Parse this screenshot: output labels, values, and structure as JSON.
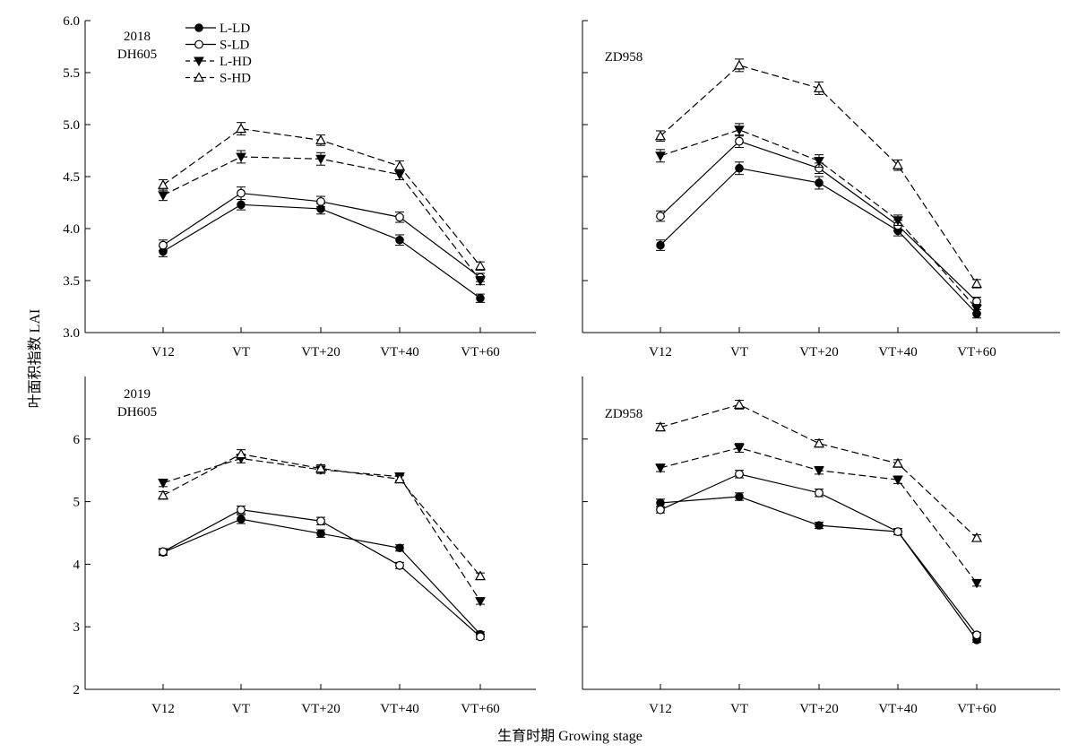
{
  "figure": {
    "ylabel": "叶面积指数 LAI",
    "xlabel": "生育时期 Growing stage"
  },
  "legend": [
    {
      "label": "L-LD",
      "marker": "filled-circle",
      "line": "solid"
    },
    {
      "label": "S-LD",
      "marker": "open-circle",
      "line": "solid"
    },
    {
      "label": "L-HD",
      "marker": "filled-triangle-down",
      "line": "dashed"
    },
    {
      "label": "S-HD",
      "marker": "open-triangle-up",
      "line": "dashed"
    }
  ],
  "colors": {
    "ink": "#000000",
    "background": "#ffffff"
  },
  "chart_data": [
    {
      "type": "line",
      "panel_label": [
        "2018",
        "DH605"
      ],
      "categories": [
        "V12",
        "VT",
        "VT+20",
        "VT+40",
        "VT+60"
      ],
      "ylim": [
        3.0,
        6.0
      ],
      "yticks": [
        "3.0",
        "3.5",
        "4.0",
        "4.5",
        "5.0",
        "5.5",
        "6.0"
      ],
      "legend_position": "top-left",
      "series": [
        {
          "name": "L-LD",
          "values": [
            3.78,
            4.23,
            4.19,
            3.89,
            3.33
          ],
          "errors": [
            0.05,
            0.05,
            0.05,
            0.05,
            0.04
          ]
        },
        {
          "name": "S-LD",
          "values": [
            3.84,
            4.34,
            4.26,
            4.11,
            3.53
          ],
          "errors": [
            0.05,
            0.06,
            0.05,
            0.05,
            0.04
          ]
        },
        {
          "name": "L-HD",
          "values": [
            4.32,
            4.69,
            4.67,
            4.52,
            3.5
          ],
          "errors": [
            0.05,
            0.06,
            0.06,
            0.05,
            0.04
          ]
        },
        {
          "name": "S-HD",
          "values": [
            4.42,
            4.96,
            4.85,
            4.6,
            3.64
          ],
          "errors": [
            0.05,
            0.06,
            0.05,
            0.05,
            0.04
          ]
        }
      ]
    },
    {
      "type": "line",
      "panel_label": [
        "ZD958"
      ],
      "categories": [
        "V12",
        "VT",
        "VT+20",
        "VT+40",
        "VT+60"
      ],
      "ylim": [
        3.0,
        6.0
      ],
      "yticks": [
        "3.0",
        "3.5",
        "4.0",
        "4.5",
        "5.0",
        "5.5",
        "6.0"
      ],
      "series": [
        {
          "name": "L-LD",
          "values": [
            3.84,
            4.58,
            4.44,
            3.98,
            3.18
          ],
          "errors": [
            0.05,
            0.06,
            0.06,
            0.05,
            0.04
          ]
        },
        {
          "name": "S-LD",
          "values": [
            4.12,
            4.84,
            4.58,
            4.03,
            3.3
          ],
          "errors": [
            0.05,
            0.06,
            0.05,
            0.05,
            0.04
          ]
        },
        {
          "name": "L-HD",
          "values": [
            4.7,
            4.95,
            4.65,
            4.08,
            3.23
          ],
          "errors": [
            0.06,
            0.06,
            0.06,
            0.05,
            0.04
          ]
        },
        {
          "name": "S-HD",
          "values": [
            4.89,
            5.57,
            5.35,
            4.61,
            3.47
          ],
          "errors": [
            0.05,
            0.06,
            0.06,
            0.05,
            0.04
          ]
        }
      ]
    },
    {
      "type": "line",
      "panel_label": [
        "2019",
        "DH605"
      ],
      "categories": [
        "V12",
        "VT",
        "VT+20",
        "VT+40",
        "VT+60"
      ],
      "ylim": [
        2,
        7
      ],
      "yticks": [
        "2",
        "3",
        "4",
        "5",
        "6"
      ],
      "series": [
        {
          "name": "L-LD",
          "values": [
            4.19,
            4.72,
            4.49,
            4.26,
            2.88
          ],
          "errors": [
            0.05,
            0.07,
            0.06,
            0.05,
            0.04
          ]
        },
        {
          "name": "S-LD",
          "values": [
            4.2,
            4.87,
            4.69,
            3.98,
            2.84
          ],
          "errors": [
            0.05,
            0.06,
            0.06,
            0.05,
            0.04
          ]
        },
        {
          "name": "L-HD",
          "values": [
            5.3,
            5.69,
            5.51,
            5.4,
            3.41
          ],
          "errors": [
            0.06,
            0.07,
            0.06,
            0.06,
            0.05
          ]
        },
        {
          "name": "S-HD",
          "values": [
            5.1,
            5.76,
            5.53,
            5.36,
            3.81
          ],
          "errors": [
            0.06,
            0.07,
            0.06,
            0.06,
            0.05
          ]
        }
      ]
    },
    {
      "type": "line",
      "panel_label": [
        "ZD958"
      ],
      "categories": [
        "V12",
        "VT",
        "VT+20",
        "VT+40",
        "VT+60"
      ],
      "ylim": [
        2,
        7
      ],
      "yticks": [
        "2",
        "3",
        "4",
        "5",
        "6"
      ],
      "series": [
        {
          "name": "L-LD",
          "values": [
            4.98,
            5.08,
            4.62,
            4.52,
            2.79
          ],
          "errors": [
            0.06,
            0.06,
            0.05,
            0.05,
            0.04
          ]
        },
        {
          "name": "S-LD",
          "values": [
            4.87,
            5.44,
            5.14,
            4.52,
            2.87
          ],
          "errors": [
            0.05,
            0.06,
            0.06,
            0.05,
            0.04
          ]
        },
        {
          "name": "L-HD",
          "values": [
            5.54,
            5.86,
            5.5,
            5.35,
            3.7
          ],
          "errors": [
            0.06,
            0.07,
            0.06,
            0.06,
            0.05
          ]
        },
        {
          "name": "S-HD",
          "values": [
            6.19,
            6.55,
            5.93,
            5.61,
            4.42
          ],
          "errors": [
            0.06,
            0.07,
            0.06,
            0.06,
            0.05
          ]
        }
      ]
    }
  ]
}
